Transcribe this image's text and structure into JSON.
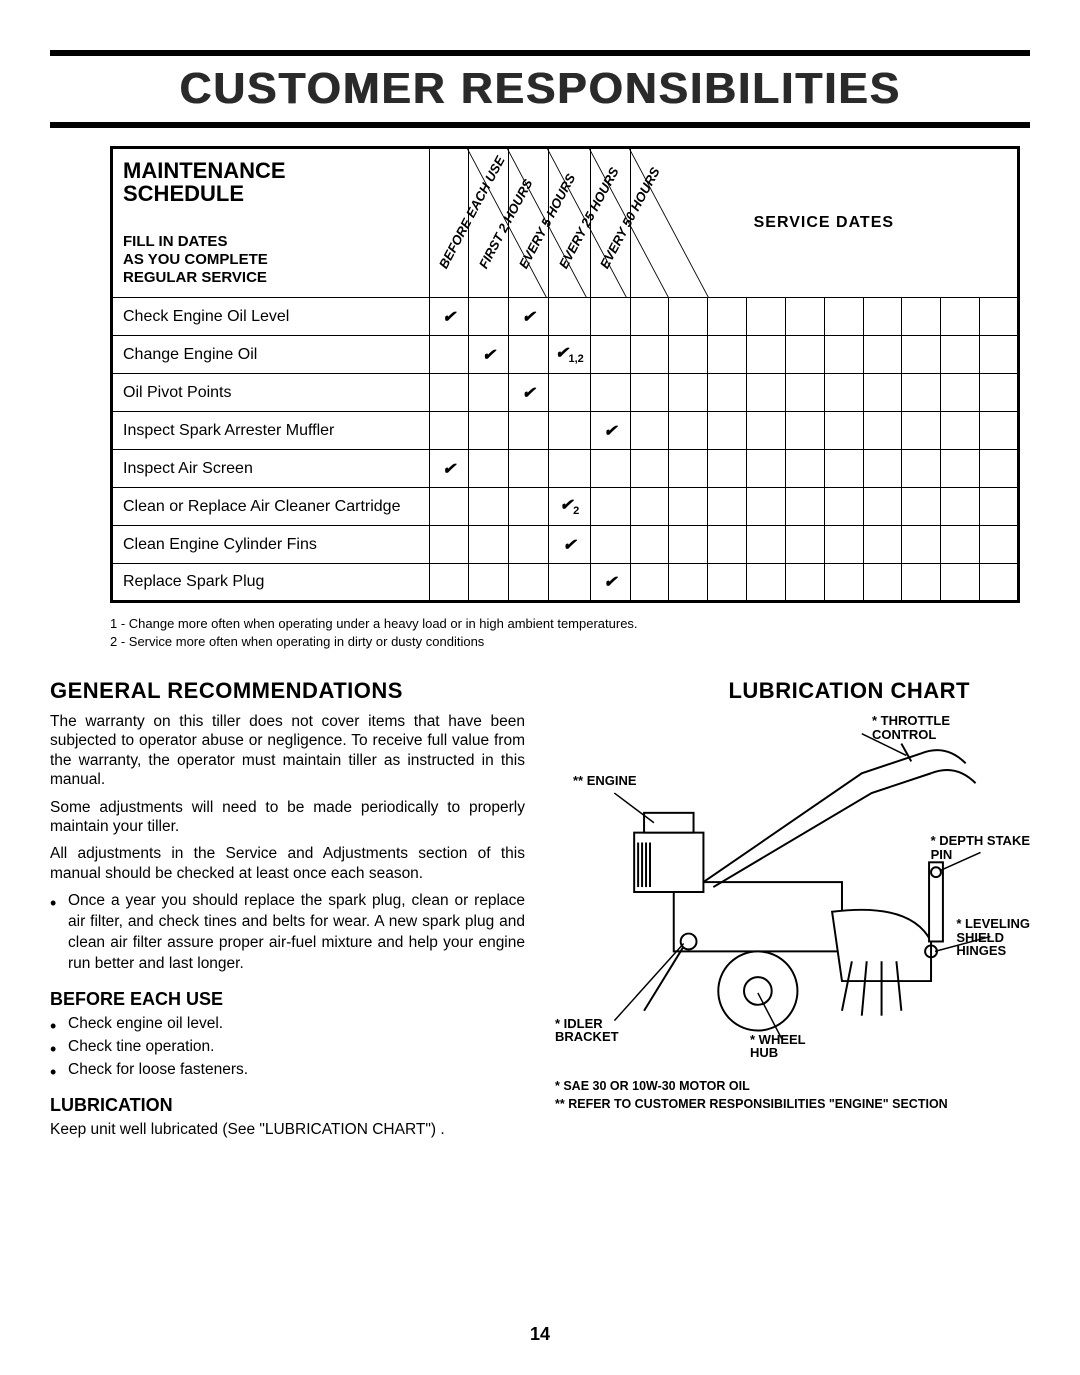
{
  "page_title": "CUSTOMER RESPONSIBILITIES",
  "schedule": {
    "heading_big": "MAINTENANCE\nSCHEDULE",
    "heading_small": "FILL IN DATES\nAS YOU COMPLETE\nREGULAR SERVICE",
    "diag_headers": [
      "BEFORE EACH USE",
      "FIRST 2 HOURS",
      "EVERY 5 HOURS",
      "EVERY 25 HOURS",
      "EVERY 50 HOURS"
    ],
    "service_dates_label": "SERVICE DATES",
    "service_date_slots": 10,
    "rows": [
      {
        "task": "Check Engine Oil Level",
        "marks": [
          "✔",
          "",
          "✔",
          "",
          ""
        ]
      },
      {
        "task": "Change Engine Oil",
        "marks": [
          "",
          "✔",
          "",
          "✔₁,₂",
          ""
        ]
      },
      {
        "task": "Oil Pivot Points",
        "marks": [
          "",
          "",
          "✔",
          "",
          ""
        ]
      },
      {
        "task": "Inspect Spark Arrester Muffler",
        "marks": [
          "",
          "",
          "",
          "",
          "✔"
        ]
      },
      {
        "task": "Inspect Air Screen",
        "marks": [
          "✔",
          "",
          "",
          "",
          ""
        ]
      },
      {
        "task": "Clean or Replace Air Cleaner Cartridge",
        "marks": [
          "",
          "",
          "",
          "✔₂",
          ""
        ]
      },
      {
        "task": "Clean Engine Cylinder Fins",
        "marks": [
          "",
          "",
          "",
          "✔",
          ""
        ]
      },
      {
        "task": "Replace Spark Plug",
        "marks": [
          "",
          "",
          "",
          "",
          "✔"
        ]
      }
    ]
  },
  "footnotes": [
    "1 - Change more often when operating under a heavy load or in high ambient temperatures.",
    "2 - Service more often when operating in dirty or dusty conditions"
  ],
  "left": {
    "h_general": "GENERAL RECOMMENDATIONS",
    "p1": "The warranty on this tiller does not cover items that have been subjected to operator abuse or negligence. To receive full value from the warranty, the operator must maintain tiller as instructed in this manual.",
    "p2": "Some adjustments will need to be made periodically to properly maintain your tiller.",
    "p3": "All adjustments in the Service and Adjustments section of this manual should be checked at least once each season.",
    "bullet_main": "Once a year you should replace the spark plug, clean or replace air filter, and check tines and belts for wear. A new spark plug and clean air filter assure proper air-fuel mixture and help your engine run better and last longer.",
    "h_before": "BEFORE EACH USE",
    "before_items": [
      "Check engine oil level.",
      "Check tine operation.",
      "Check for loose fasteners."
    ],
    "h_lube": "LUBRICATION",
    "p_lube": "Keep unit well lubricated (See \"LUBRICATION CHART\") ."
  },
  "right": {
    "h_chart": "LUBRICATION CHART",
    "labels": {
      "throttle": "* THROTTLE\nCONTROL",
      "engine": "** ENGINE",
      "depth": "* DEPTH STAKE\nPIN",
      "level": "* LEVELING\nSHIELD\nHINGES",
      "idler": "* IDLER\nBRACKET",
      "wheel": "* WHEEL\nHUB"
    },
    "note1": "* SAE 30 OR 10W-30 MOTOR OIL",
    "note2": "** REFER TO CUSTOMER RESPONSIBILITIES \"ENGINE\" SECTION"
  },
  "page_number": "14",
  "colors": {
    "text": "#000000",
    "bg": "#ffffff",
    "rule": "#000000"
  }
}
